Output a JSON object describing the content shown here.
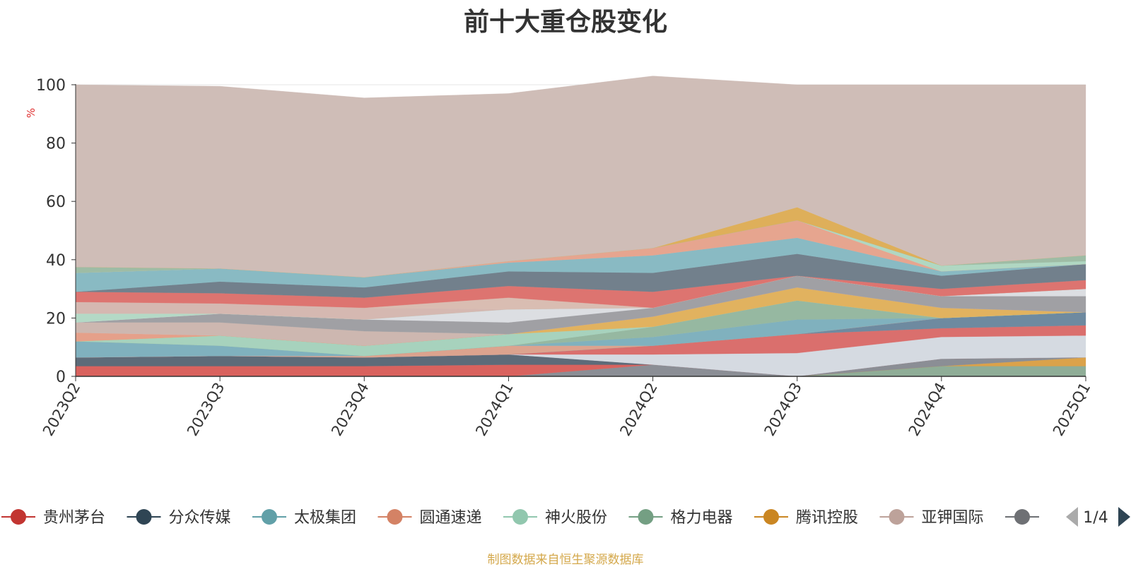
{
  "title": "前十大重仓股变化",
  "source_note": "制图数据来自恒生聚源数据库",
  "pager": {
    "label": "1/4"
  },
  "chart_data": {
    "type": "area",
    "stacked": true,
    "ylabel": "%",
    "ylim": [
      0,
      100
    ],
    "yticks": [
      0,
      20,
      40,
      60,
      80,
      100
    ],
    "grid": true,
    "legend_position": "bottom",
    "categories": [
      "2023Q2",
      "2023Q3",
      "2023Q4",
      "2024Q1",
      "2024Q2",
      "2024Q3",
      "2024Q4",
      "2025Q1"
    ],
    "series": [
      {
        "name": "格力电器",
        "color": "#8fad97",
        "values": [
          0,
          0,
          0,
          0,
          0,
          0,
          3.5,
          3.5
        ]
      },
      {
        "name": "腾讯控股",
        "color": "#dba24a",
        "values": [
          0,
          0,
          0,
          0,
          0,
          0,
          0,
          3
        ]
      },
      {
        "name": "",
        "color": "#8b8e95",
        "values": [
          0,
          0,
          0,
          0,
          4,
          0,
          2.5,
          0
        ]
      },
      {
        "name": "贵州茅台",
        "color": "#d9625e",
        "values": [
          3.5,
          3.5,
          3.5,
          4,
          0,
          0,
          0,
          0
        ]
      },
      {
        "name": "分众传媒",
        "color": "#5d6b79",
        "values": [
          3,
          3.5,
          3,
          3.5,
          0,
          0,
          0,
          0
        ]
      },
      {
        "name": "",
        "color": "#d5dae1",
        "values": [
          0,
          0,
          0,
          0,
          3.5,
          8,
          7.5,
          7.5
        ]
      },
      {
        "name": "",
        "color": "#da6f6d",
        "values": [
          0,
          0,
          0,
          0,
          3,
          6.5,
          3,
          3.5
        ]
      },
      {
        "name": "",
        "color": "#6e8aa0",
        "values": [
          0,
          0,
          0,
          0,
          0,
          0,
          3.5,
          4.5
        ]
      },
      {
        "name": "圆通速递",
        "color": "#dca38e",
        "values": [
          0,
          0,
          0.5,
          3,
          0,
          0,
          0,
          0
        ]
      },
      {
        "name": "太极集团",
        "color": "#80b1be",
        "values": [
          5.5,
          3.5,
          0,
          0,
          3,
          5,
          0,
          0
        ]
      },
      {
        "name": "",
        "color": "#96b8a1",
        "values": [
          0,
          0,
          0,
          0,
          3.5,
          6.5,
          0,
          0
        ]
      },
      {
        "name": "神火股份",
        "color": "#a7d2bd",
        "values": [
          0,
          3.5,
          3.5,
          4,
          0,
          0,
          0,
          0
        ]
      },
      {
        "name": "",
        "color": "#e1b25f",
        "values": [
          0,
          0,
          0,
          0,
          3.5,
          4.5,
          3.5,
          0
        ]
      },
      {
        "name": "",
        "color": "#e5a08a",
        "values": [
          3,
          0,
          0,
          0,
          0,
          0,
          0,
          0
        ]
      },
      {
        "name": "亚钾国际",
        "color": "#cdb7b0",
        "values": [
          3.5,
          4.5,
          5,
          0,
          0,
          0,
          0,
          0
        ]
      },
      {
        "name": "",
        "color": "#a0a0a4",
        "values": [
          0,
          3,
          4,
          4,
          3,
          4,
          4,
          5.5
        ]
      },
      {
        "name": "",
        "color": "#dcdee2",
        "values": [
          0,
          0,
          0,
          4.5,
          0,
          0,
          0,
          2.5
        ]
      },
      {
        "name": "",
        "color": "#b4d9c6",
        "values": [
          3,
          0,
          0,
          0,
          0,
          0,
          0,
          0
        ]
      },
      {
        "name": "",
        "color": "#d5b8b1",
        "values": [
          4,
          3.5,
          4,
          0,
          0,
          0,
          0,
          0
        ]
      },
      {
        "name": "",
        "color": "#d9bdb2",
        "values": [
          0,
          0,
          0,
          4,
          0,
          0,
          0,
          0
        ]
      },
      {
        "name": "",
        "color": "#dd7470",
        "values": [
          3.5,
          3.5,
          3.5,
          4,
          5.5,
          0,
          2.5,
          3
        ]
      },
      {
        "name": "",
        "color": "#72808c",
        "values": [
          0,
          4,
          3.5,
          5,
          6.5,
          7.5,
          4.5,
          5.5
        ]
      },
      {
        "name": "",
        "color": "#89bac3",
        "values": [
          6.5,
          4.5,
          3.5,
          3,
          6,
          5.5,
          1.5,
          0
        ]
      },
      {
        "name": "",
        "color": "#e6a58f",
        "values": [
          0,
          0,
          0,
          0.5,
          2.5,
          6,
          0,
          0
        ]
      },
      {
        "name": "",
        "color": "#b0d7c2",
        "values": [
          0,
          0,
          0,
          0,
          0,
          0,
          2,
          1
        ]
      },
      {
        "name": "",
        "color": "#9ebca5",
        "values": [
          2,
          0,
          0,
          0,
          0,
          0,
          0,
          2
        ]
      },
      {
        "name": "",
        "color": "#deaf5a",
        "values": [
          0,
          0,
          0,
          0,
          0,
          4.5,
          0,
          0
        ]
      },
      {
        "name": "",
        "color": "#cfbdb7",
        "values": [
          62.5,
          62.5,
          61.5,
          57.5,
          59,
          42,
          62,
          58.5
        ]
      }
    ]
  },
  "legend": {
    "items": [
      {
        "name": "贵州茅台",
        "color": "#c23531"
      },
      {
        "name": "分众传媒",
        "color": "#2f4554"
      },
      {
        "name": "太极集团",
        "color": "#61a0a8"
      },
      {
        "name": "圆通速递",
        "color": "#d48265"
      },
      {
        "name": "神火股份",
        "color": "#91c7ae"
      },
      {
        "name": "格力电器",
        "color": "#749f83"
      },
      {
        "name": "腾讯控股",
        "color": "#ca8622"
      },
      {
        "name": "亚钾国际",
        "color": "#bda29a"
      },
      {
        "name": "",
        "color": "#6e7074"
      }
    ]
  }
}
